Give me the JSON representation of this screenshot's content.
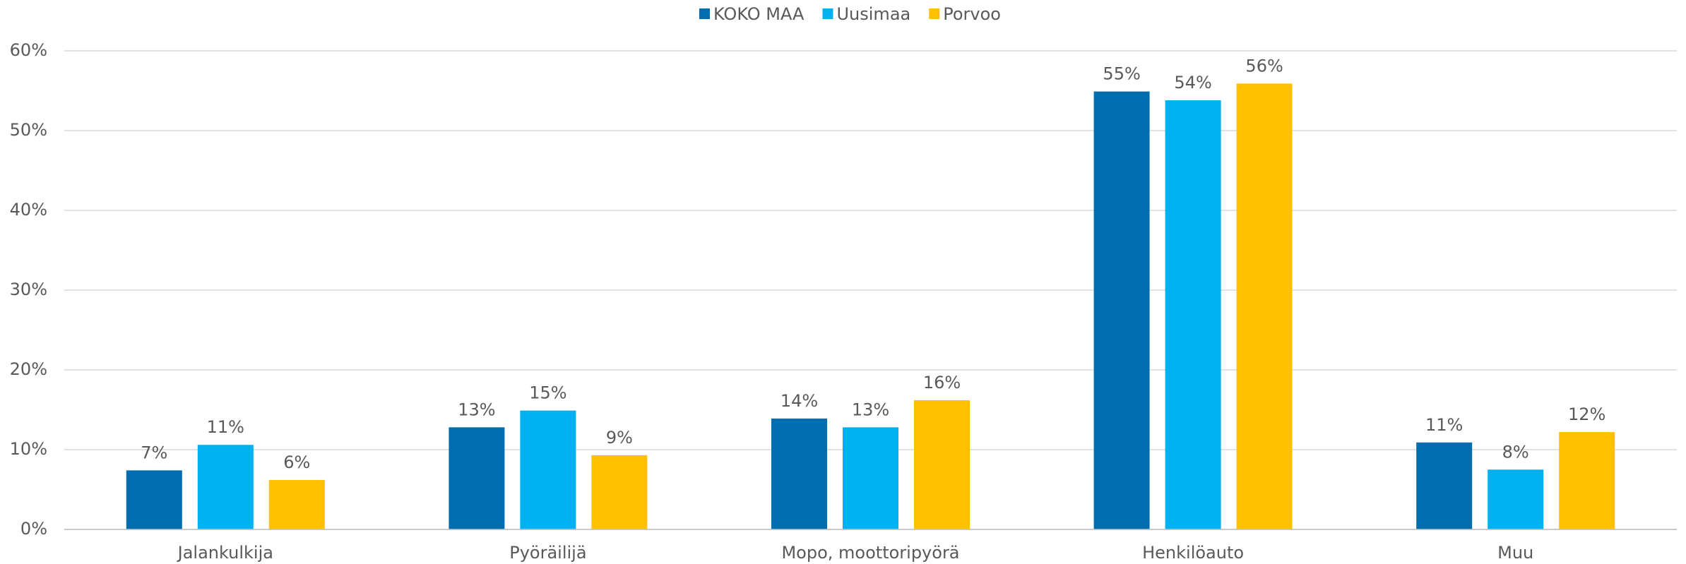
{
  "chart_data": {
    "type": "bar",
    "categories": [
      "Jalankulkija",
      "Pyöräilijä",
      "Mopo, moottoripyörä",
      "Henkilöauto",
      "Muu"
    ],
    "series": [
      {
        "name": "KOKO MAA",
        "color": "#006eae",
        "values": [
          7.4,
          12.8,
          13.9,
          54.9,
          10.9
        ],
        "value_labels": [
          "7%",
          "13%",
          "14%",
          "55%",
          "11%"
        ]
      },
      {
        "name": "Uusimaa",
        "color": "#00b0f0",
        "values": [
          10.6,
          14.9,
          12.8,
          53.8,
          7.5
        ],
        "value_labels": [
          "11%",
          "15%",
          "13%",
          "54%",
          "8%"
        ]
      },
      {
        "name": "Porvoo",
        "color": "#ffc000",
        "values": [
          6.2,
          9.3,
          16.2,
          55.9,
          12.2
        ],
        "value_labels": [
          "6%",
          "9%",
          "16%",
          "56%",
          "12%"
        ]
      }
    ],
    "ylim": [
      0,
      60
    ],
    "yticks": [
      {
        "value": 0,
        "label": "0%"
      },
      {
        "value": 10,
        "label": "10%"
      },
      {
        "value": 20,
        "label": "20%"
      },
      {
        "value": 30,
        "label": "30%"
      },
      {
        "value": 40,
        "label": "40%"
      },
      {
        "value": 50,
        "label": "50%"
      },
      {
        "value": 60,
        "label": "60%"
      }
    ],
    "grid": true,
    "legend": "top"
  }
}
